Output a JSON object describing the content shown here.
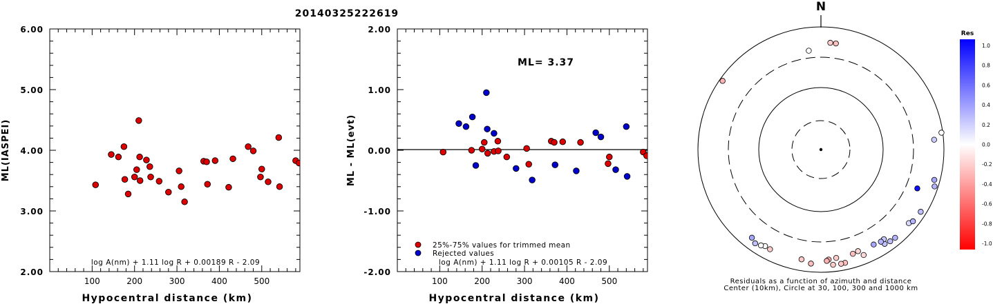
{
  "event_title": "20140325222619",
  "chart_data": [
    {
      "type": "scatter",
      "title": "",
      "xlabel": "Hypocentral distance (km)",
      "ylabel": "ML(IASPEI)",
      "xlim": [
        0,
        590
      ],
      "ylim": [
        2.0,
        6.0
      ],
      "x_ticks": [
        "100",
        "200",
        "300",
        "400",
        "500"
      ],
      "y_ticks": [
        "2.00",
        "3.00",
        "4.00",
        "5.00",
        "6.00"
      ],
      "formula": "log A(nm) + 1.11 log R + 0.00189 R - 2.09",
      "series": [
        {
          "color": "#dd0000",
          "points": [
            [
              108,
              3.43
            ],
            [
              145,
              3.93
            ],
            [
              162,
              3.89
            ],
            [
              175,
              4.06
            ],
            [
              177,
              3.52
            ],
            [
              185,
              3.28
            ],
            [
              200,
              3.56
            ],
            [
              205,
              3.68
            ],
            [
              210,
              4.49
            ],
            [
              212,
              3.89
            ],
            [
              213,
              3.5
            ],
            [
              228,
              3.84
            ],
            [
              236,
              3.73
            ],
            [
              238,
              3.56
            ],
            [
              258,
              3.49
            ],
            [
              280,
              3.31
            ],
            [
              305,
              3.66
            ],
            [
              310,
              3.4
            ],
            [
              318,
              3.15
            ],
            [
              363,
              3.82
            ],
            [
              370,
              3.81
            ],
            [
              372,
              3.44
            ],
            [
              390,
              3.83
            ],
            [
              422,
              3.39
            ],
            [
              432,
              3.86
            ],
            [
              468,
              4.06
            ],
            [
              480,
              3.99
            ],
            [
              497,
              3.56
            ],
            [
              500,
              3.69
            ],
            [
              515,
              3.48
            ],
            [
              540,
              4.21
            ],
            [
              542,
              3.4
            ],
            [
              580,
              3.83
            ],
            [
              588,
              3.79
            ]
          ]
        }
      ]
    },
    {
      "type": "scatter",
      "title": "",
      "xlabel": "Hypocentral distance (km)",
      "ylabel": "ML - ML(evt)",
      "xlim": [
        0,
        590
      ],
      "ylim": [
        -2.0,
        2.0
      ],
      "x_ticks": [
        "100",
        "200",
        "300",
        "400",
        "500"
      ],
      "y_ticks": [
        "-2.00",
        "-1.00",
        "0.00",
        "1.00",
        "2.00"
      ],
      "annotation": "ML= 3.37",
      "formula": "log A(nm) + 1.11 log R + 0.00105 R - 2.09",
      "legend": {
        "position": "bottom-left",
        "entries": [
          "25%-75% values for trimmed mean",
          "Rejected values"
        ]
      },
      "series": [
        {
          "name": "25%-75% values for trimmed mean",
          "color": "#dd0000",
          "points": [
            [
              108,
              -0.03
            ],
            [
              175,
              0.0
            ],
            [
              200,
              0.02
            ],
            [
              205,
              0.13
            ],
            [
              213,
              -0.05
            ],
            [
              228,
              -0.02
            ],
            [
              237,
              0.15
            ],
            [
              238,
              -0.01
            ],
            [
              258,
              -0.11
            ],
            [
              305,
              0.03
            ],
            [
              310,
              -0.23
            ],
            [
              363,
              0.15
            ],
            [
              370,
              0.13
            ],
            [
              390,
              0.14
            ],
            [
              432,
              0.13
            ],
            [
              497,
              -0.22
            ],
            [
              500,
              -0.11
            ],
            [
              580,
              -0.03
            ],
            [
              588,
              -0.09
            ]
          ]
        },
        {
          "name": "Rejected values",
          "color": "#0000cc",
          "points": [
            [
              145,
              0.44
            ],
            [
              162,
              0.39
            ],
            [
              177,
              0.55
            ],
            [
              185,
              -0.25
            ],
            [
              210,
              0.95
            ],
            [
              212,
              0.35
            ],
            [
              228,
              0.28
            ],
            [
              280,
              -0.3
            ],
            [
              318,
              -0.49
            ],
            [
              372,
              -0.24
            ],
            [
              422,
              -0.34
            ],
            [
              468,
              0.29
            ],
            [
              480,
              0.22
            ],
            [
              515,
              -0.32
            ],
            [
              540,
              0.39
            ],
            [
              542,
              -0.43
            ]
          ]
        }
      ]
    },
    {
      "type": "polar-residual-map",
      "north_label": "N",
      "caption_line1": "Residuals as a function of azimuth and distance",
      "caption_line2": "Center (10km), Circle at 30, 100, 300 and 1000 km",
      "colorbar": {
        "title": "Res",
        "tick_labels": [
          "1.0",
          "0.8",
          "0.6",
          "0.4",
          "0.2",
          "0.0",
          "-0.2",
          "-0.4",
          "-0.6",
          "-0.8",
          "-1.0"
        ],
        "max_color": "#0000ff",
        "zero_color": "#ffffff",
        "min_color": "#ff0000"
      },
      "stations": [
        {
          "az": 5,
          "dist": 540,
          "res": -0.2
        },
        {
          "az": 8,
          "dist": 540,
          "res": -0.25
        },
        {
          "az": 353,
          "dist": 400,
          "res": 0.0
        },
        {
          "az": 305,
          "dist": 890,
          "res": -0.3
        },
        {
          "az": 85,
          "dist": 690,
          "res": 0.2
        },
        {
          "az": 82,
          "dist": 950,
          "res": 0.0
        },
        {
          "az": 112,
          "dist": 470,
          "res": 0.95
        },
        {
          "az": 105,
          "dist": 800,
          "res": 0.35
        },
        {
          "az": 108,
          "dist": 870,
          "res": 0.3
        },
        {
          "az": 140,
          "dist": 740,
          "res": 0.3
        },
        {
          "az": 143,
          "dist": 730,
          "res": 0.25
        },
        {
          "az": 146,
          "dist": 700,
          "res": 0.24
        },
        {
          "az": 145,
          "dist": 590,
          "res": 0.22
        },
        {
          "az": 147,
          "dist": 600,
          "res": 0.3
        },
        {
          "az": 151,
          "dist": 570,
          "res": 0.35
        },
        {
          "az": 130,
          "dist": 720,
          "res": 0.15
        },
        {
          "az": 128,
          "dist": 780,
          "res": 0.3
        },
        {
          "az": 122,
          "dist": 810,
          "res": 0.25
        },
        {
          "az": 160,
          "dist": 560,
          "res": -0.15
        },
        {
          "az": 163,
          "dist": 580,
          "res": -0.25
        },
        {
          "az": 172,
          "dist": 590,
          "res": -0.2
        },
        {
          "az": 176,
          "dist": 610,
          "res": -0.3
        },
        {
          "az": 177,
          "dist": 640,
          "res": -0.3
        },
        {
          "az": 158,
          "dist": 700,
          "res": -0.15
        },
        {
          "az": 168,
          "dist": 760,
          "res": -0.25
        },
        {
          "az": 170,
          "dist": 765,
          "res": -0.22
        },
        {
          "az": 174,
          "dist": 760,
          "res": -0.2
        },
        {
          "az": 185,
          "dist": 720,
          "res": -0.25
        },
        {
          "az": 190,
          "dist": 640,
          "res": -0.2
        },
        {
          "az": 210,
          "dist": 640,
          "res": 0.0
        },
        {
          "az": 212,
          "dist": 680,
          "res": 0.0
        },
        {
          "az": 207,
          "dist": 650,
          "res": -0.2
        },
        {
          "az": 215,
          "dist": 720,
          "res": 0.25
        },
        {
          "az": 218,
          "dist": 650,
          "res": 0.35
        }
      ]
    }
  ]
}
